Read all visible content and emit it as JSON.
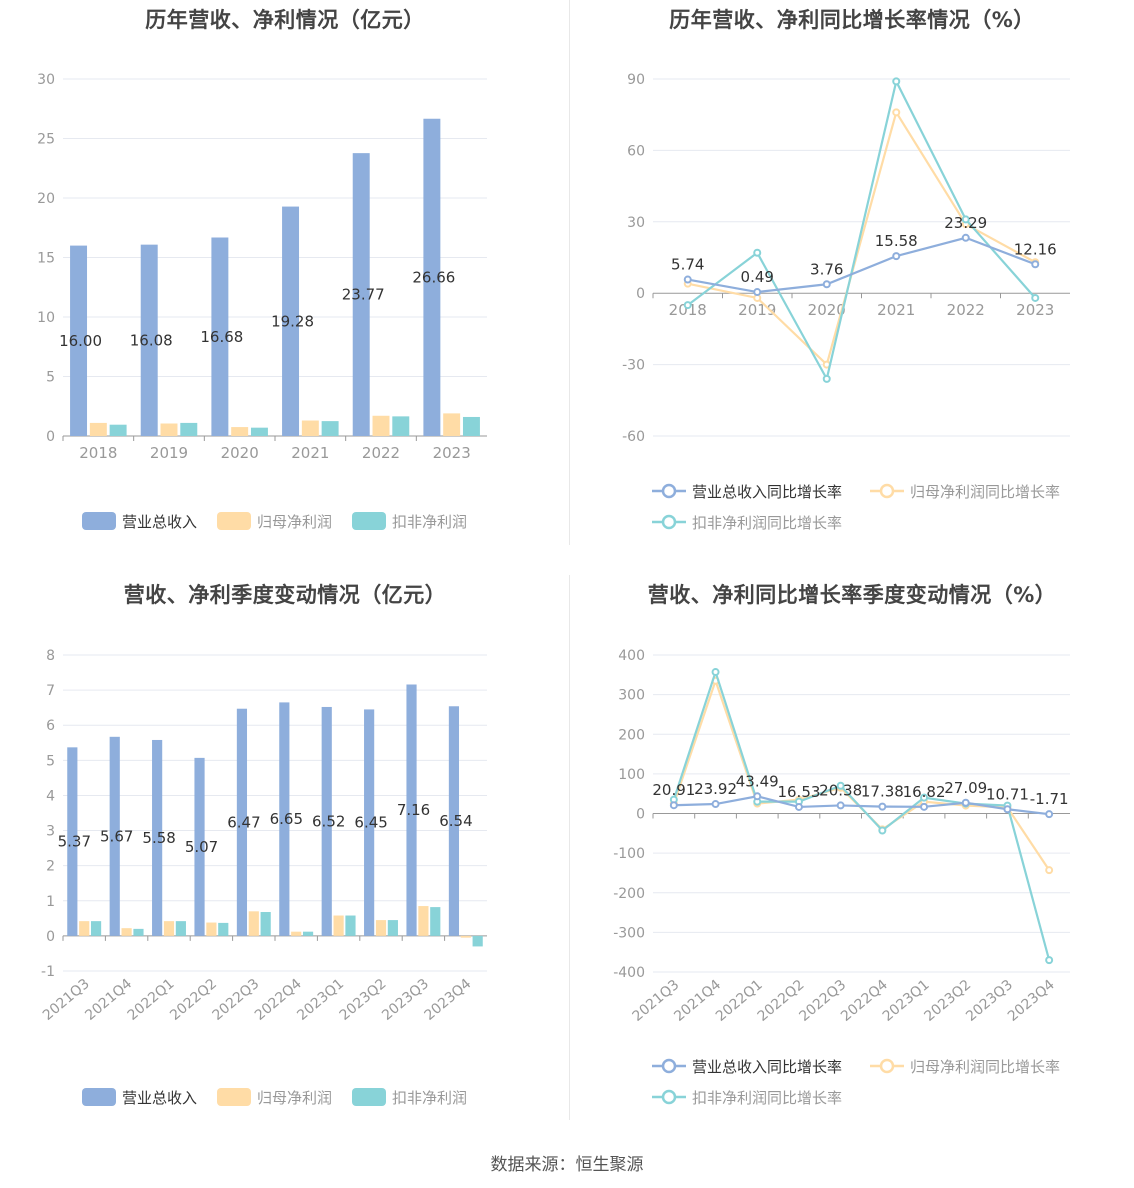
{
  "source": "数据来源：恒生聚源",
  "colors": {
    "revenue": "#8eaedc",
    "net_profit": "#ffdca6",
    "deducted_profit": "#88d3d8",
    "axis": "#999",
    "grid": "#e6e9f0",
    "label": "#333"
  },
  "chart_data": [
    {
      "type": "bar",
      "title": "历年营收、净利情况（亿元）",
      "categories": [
        "2018",
        "2019",
        "2020",
        "2021",
        "2022",
        "2023"
      ],
      "series": [
        {
          "name": "营业总收入",
          "values": [
            16.0,
            16.08,
            16.68,
            19.28,
            23.77,
            26.66
          ],
          "labels": [
            "16.00",
            "16.08",
            "16.68",
            "19.28",
            "23.77",
            "26.66"
          ]
        },
        {
          "name": "归母净利润",
          "values": [
            1.1,
            1.05,
            0.75,
            1.3,
            1.7,
            1.9
          ]
        },
        {
          "name": "扣非净利润",
          "values": [
            0.95,
            1.1,
            0.7,
            1.25,
            1.65,
            1.6
          ]
        }
      ],
      "yticks": [
        "0",
        "5",
        "10",
        "15",
        "20",
        "25",
        "30"
      ],
      "ylim": [
        0,
        30
      ],
      "legend": "bottom",
      "grid": true
    },
    {
      "type": "line",
      "title": "历年营收、净利同比增长率情况（%）",
      "categories": [
        "2018",
        "2019",
        "2020",
        "2021",
        "2022",
        "2023"
      ],
      "series": [
        {
          "name": "营业总收入同比增长率",
          "values": [
            5.74,
            0.49,
            3.76,
            15.58,
            23.29,
            12.16
          ],
          "labels": [
            "5.74",
            "0.49",
            "3.76",
            "15.58",
            "23.29",
            "12.16"
          ]
        },
        {
          "name": "归母净利润同比增长率",
          "values": [
            4,
            -2,
            -30,
            76,
            29,
            13
          ]
        },
        {
          "name": "扣非净利润同比增长率",
          "values": [
            -5,
            17,
            -36,
            89,
            31,
            -2
          ]
        }
      ],
      "yticks": [
        "-60",
        "-30",
        "0",
        "30",
        "60",
        "90"
      ],
      "ylim": [
        -60,
        90
      ],
      "legend": "bottom",
      "grid": true
    },
    {
      "type": "bar",
      "title": "营收、净利季度变动情况（亿元）",
      "categories": [
        "2021Q3",
        "2021Q4",
        "2022Q1",
        "2022Q2",
        "2022Q3",
        "2022Q4",
        "2023Q1",
        "2023Q2",
        "2023Q3",
        "2023Q4"
      ],
      "series": [
        {
          "name": "营业总收入",
          "values": [
            5.37,
            5.67,
            5.58,
            5.07,
            6.47,
            6.65,
            6.52,
            6.45,
            7.16,
            6.54
          ],
          "labels": [
            "5.37",
            "5.67",
            "5.58",
            "5.07",
            "6.47",
            "6.65",
            "6.52",
            "6.45",
            "7.16",
            "6.54"
          ]
        },
        {
          "name": "归母净利润",
          "values": [
            0.42,
            0.22,
            0.42,
            0.38,
            0.7,
            0.12,
            0.58,
            0.45,
            0.85,
            -0.05
          ]
        },
        {
          "name": "扣非净利润",
          "values": [
            0.42,
            0.2,
            0.42,
            0.37,
            0.68,
            0.12,
            0.58,
            0.45,
            0.82,
            -0.3
          ]
        }
      ],
      "yticks": [
        "-1",
        "0",
        "1",
        "2",
        "3",
        "4",
        "5",
        "6",
        "7",
        "8"
      ],
      "ylim": [
        -1,
        8
      ],
      "legend": "bottom",
      "grid": true
    },
    {
      "type": "line",
      "title": "营收、净利同比增长率季度变动情况（%）",
      "categories": [
        "2021Q3",
        "2021Q4",
        "2022Q1",
        "2022Q2",
        "2022Q3",
        "2022Q4",
        "2023Q1",
        "2023Q2",
        "2023Q3",
        "2023Q4"
      ],
      "series": [
        {
          "name": "营业总收入同比增长率",
          "values": [
            20.91,
            23.92,
            43.49,
            16.53,
            20.38,
            17.38,
            16.82,
            27.09,
            10.71,
            -1.71
          ],
          "labels": [
            "20.91",
            "23.92",
            "43.49",
            "16.53",
            "20.38",
            "17.38",
            "16.82",
            "27.09",
            "10.71",
            "-1.71"
          ]
        },
        {
          "name": "归母净利润同比增长率",
          "values": [
            25,
            335,
            25,
            35,
            65,
            -40,
            30,
            20,
            15,
            -143
          ]
        },
        {
          "name": "扣非净利润同比增长率",
          "values": [
            35,
            357,
            30,
            30,
            70,
            -43,
            40,
            25,
            20,
            -370
          ]
        }
      ],
      "yticks": [
        "-400",
        "-300",
        "-200",
        "-100",
        "0",
        "100",
        "200",
        "300",
        "400"
      ],
      "ylim": [
        -400,
        400
      ],
      "legend": "bottom",
      "grid": true
    }
  ]
}
